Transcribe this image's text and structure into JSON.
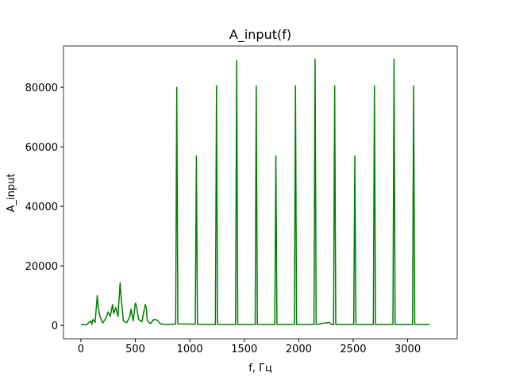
{
  "chart_data": {
    "type": "line",
    "title": "A_input(f)",
    "x_label": "f, Гц",
    "y_label": "A_input",
    "x": [
      0,
      50,
      90,
      100,
      110,
      130,
      150,
      160,
      175,
      200,
      230,
      250,
      270,
      290,
      300,
      320,
      340,
      360,
      370,
      390,
      420,
      450,
      460,
      480,
      500,
      510,
      530,
      560,
      590,
      600,
      610,
      640,
      670,
      700,
      730,
      800,
      870,
      880,
      890,
      1050,
      1060,
      1070,
      1235,
      1245,
      1255,
      1420,
      1430,
      1440,
      1600,
      1610,
      1620,
      1780,
      1790,
      1800,
      1960,
      1970,
      1980,
      2140,
      2150,
      2160,
      2280,
      2300,
      2320,
      2330,
      2340,
      2505,
      2515,
      2525,
      2685,
      2695,
      2705,
      2865,
      2875,
      2885,
      3045,
      3055,
      3065,
      3200
    ],
    "series": [
      {
        "color": "#008000",
        "values": [
          300,
          200,
          1500,
          300,
          2000,
          1000,
          10000,
          6000,
          3000,
          800,
          2500,
          4500,
          3000,
          7000,
          4000,
          6000,
          3000,
          14300,
          9000,
          1500,
          900,
          3000,
          5500,
          1500,
          7500,
          6500,
          2000,
          1200,
          7000,
          6000,
          1500,
          600,
          2000,
          1800,
          500,
          300,
          500,
          80000,
          500,
          400,
          57000,
          400,
          300,
          80500,
          300,
          300,
          89000,
          300,
          300,
          80500,
          300,
          300,
          57000,
          300,
          300,
          80500,
          300,
          300,
          89500,
          300,
          1000,
          300,
          300,
          80500,
          300,
          300,
          57000,
          300,
          300,
          80500,
          300,
          300,
          89500,
          300,
          300,
          80500,
          300,
          300
        ]
      }
    ],
    "xlim": [
      -160,
      3455
    ],
    "ylim": [
      -4500,
      93900
    ],
    "xticks": [
      0,
      500,
      1000,
      1500,
      2000,
      2500,
      3000
    ],
    "yticks": [
      0,
      20000,
      40000,
      60000,
      80000
    ],
    "grid": false
  }
}
